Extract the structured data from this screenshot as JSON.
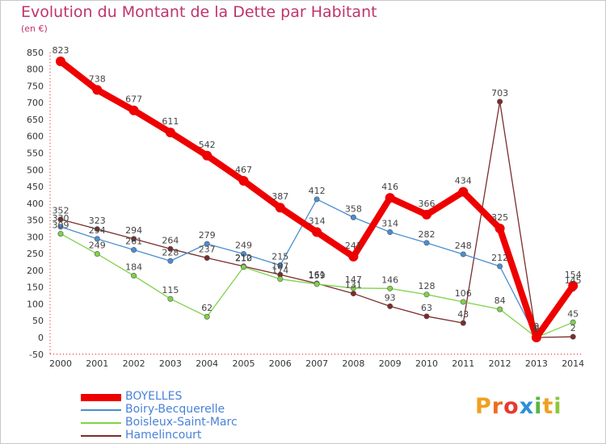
{
  "title": "Evolution du Montant de la Dette par Habitant",
  "subtitle": "(en €)",
  "logo_text": "Proxiti",
  "chart_data": {
    "type": "line",
    "title": "Evolution du Montant de la Dette par Habitant",
    "ylabel": "(en €)",
    "x": [
      "2000",
      "2001",
      "2002",
      "2003",
      "2004",
      "2005",
      "2006",
      "2007",
      "2008",
      "2009",
      "2010",
      "2011",
      "2012",
      "2013",
      "2014"
    ],
    "ylim": [
      -50,
      850
    ],
    "yticks": [
      -50,
      0,
      50,
      100,
      150,
      200,
      250,
      300,
      350,
      400,
      450,
      500,
      550,
      600,
      650,
      700,
      750,
      800,
      850
    ],
    "grid": false,
    "legend_position": "bottom-left",
    "series": [
      {
        "name": "BOYELLES",
        "color": "#ee0000",
        "values": [
          823,
          738,
          677,
          611,
          542,
          467,
          387,
          314,
          241,
          416,
          366,
          434,
          325,
          0,
          154
        ],
        "labels": [
          "823",
          "738",
          "677",
          "611",
          "542",
          "467",
          "387",
          "314",
          "241",
          "416",
          "366",
          "434",
          "325",
          "0",
          "154"
        ]
      },
      {
        "name": "Boiry-Becquerelle",
        "color": "#4a8ed0",
        "values": [
          330,
          294,
          261,
          228,
          279,
          249,
          215,
          412,
          358,
          314,
          282,
          248,
          212,
          0,
          145
        ],
        "labels": [
          "330",
          "294",
          "261",
          "228",
          "279",
          "249",
          "215",
          "412",
          "358",
          "314",
          "282",
          "248",
          "212",
          "0",
          "145"
        ]
      },
      {
        "name": "Boisleux-Saint-Marc",
        "color": "#7fd24a",
        "values": [
          309,
          249,
          184,
          115,
          62,
          210,
          174,
          159,
          147,
          146,
          128,
          106,
          84,
          0,
          45
        ],
        "labels": [
          "309",
          "249",
          "184",
          "115",
          "62",
          "210",
          "174",
          "159",
          "147",
          "146",
          "128",
          "106",
          "84",
          "0",
          "45"
        ]
      },
      {
        "name": "Hamelincourt",
        "color": "#7a2d2d",
        "values": [
          352,
          323,
          294,
          264,
          237,
          212,
          187,
          161,
          131,
          93,
          63,
          43,
          703,
          0,
          2
        ],
        "labels": [
          "352",
          "323",
          "294",
          "264",
          "237",
          "212",
          "187",
          "161",
          "131",
          "93",
          "63",
          "43",
          "703",
          "0",
          "2"
        ]
      }
    ]
  }
}
